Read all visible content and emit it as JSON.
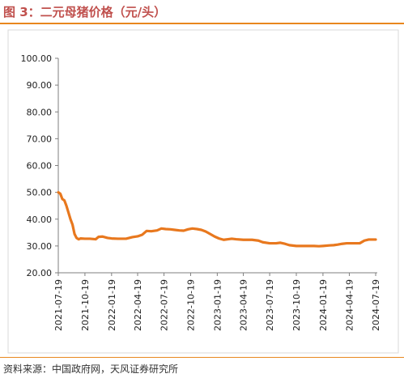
{
  "figure": {
    "title": "图 3：二元母猪价格（元/头）",
    "source": "资料来源：中国政府网，天风证券研究所"
  },
  "colors": {
    "accent": "#e8871e",
    "title": "#c0504d",
    "line": "#e8781e",
    "axis": "#7f7f7f"
  },
  "chart_data": {
    "type": "line",
    "title": "",
    "xlabel": "",
    "ylabel": "",
    "ylim": [
      20,
      100
    ],
    "grid": false,
    "y_ticks": [
      "20.00",
      "30.00",
      "40.00",
      "50.00",
      "60.00",
      "70.00",
      "80.00",
      "90.00",
      "100.00"
    ],
    "x_ticks": [
      "2021-07-19",
      "2021-10-19",
      "2022-01-19",
      "2022-04-19",
      "2022-07-19",
      "2022-10-19",
      "2023-01-19",
      "2023-04-19",
      "2023-07-19",
      "2023-10-19",
      "2024-01-19",
      "2024-04-19",
      "2024-07-19"
    ],
    "series": [
      {
        "values": [
          [
            "2021-07-19",
            50.0
          ],
          [
            "2021-07-26",
            49.5
          ],
          [
            "2021-08-02",
            47.5
          ],
          [
            "2021-08-09",
            47.0
          ],
          [
            "2021-08-16",
            45.0
          ],
          [
            "2021-08-23",
            42.5
          ],
          [
            "2021-08-30",
            40.0
          ],
          [
            "2021-09-06",
            38.0
          ],
          [
            "2021-09-13",
            34.5
          ],
          [
            "2021-09-20",
            33.0
          ],
          [
            "2021-09-27",
            32.5
          ],
          [
            "2021-10-04",
            32.8
          ],
          [
            "2021-10-19",
            32.7
          ],
          [
            "2021-11-05",
            32.7
          ],
          [
            "2021-11-25",
            32.5
          ],
          [
            "2021-12-05",
            33.4
          ],
          [
            "2021-12-19",
            33.5
          ],
          [
            "2022-01-05",
            33.0
          ],
          [
            "2022-01-19",
            32.8
          ],
          [
            "2022-02-10",
            32.7
          ],
          [
            "2022-03-10",
            32.7
          ],
          [
            "2022-04-01",
            33.3
          ],
          [
            "2022-04-19",
            33.6
          ],
          [
            "2022-05-05",
            34.2
          ],
          [
            "2022-05-20",
            35.6
          ],
          [
            "2022-06-05",
            35.5
          ],
          [
            "2022-06-25",
            35.8
          ],
          [
            "2022-07-10",
            36.5
          ],
          [
            "2022-07-25",
            36.3
          ],
          [
            "2022-08-10",
            36.2
          ],
          [
            "2022-08-25",
            36.0
          ],
          [
            "2022-09-10",
            35.8
          ],
          [
            "2022-09-25",
            35.7
          ],
          [
            "2022-10-10",
            36.2
          ],
          [
            "2022-10-25",
            36.5
          ],
          [
            "2022-11-10",
            36.3
          ],
          [
            "2022-11-25",
            36.0
          ],
          [
            "2022-12-10",
            35.4
          ],
          [
            "2022-12-25",
            34.5
          ],
          [
            "2023-01-10",
            33.5
          ],
          [
            "2023-01-25",
            32.8
          ],
          [
            "2023-02-10",
            32.3
          ],
          [
            "2023-02-25",
            32.5
          ],
          [
            "2023-03-10",
            32.7
          ],
          [
            "2023-03-25",
            32.5
          ],
          [
            "2023-04-19",
            32.3
          ],
          [
            "2023-05-19",
            32.3
          ],
          [
            "2023-06-10",
            32.0
          ],
          [
            "2023-06-25",
            31.4
          ],
          [
            "2023-07-19",
            31.0
          ],
          [
            "2023-08-10",
            31.0
          ],
          [
            "2023-08-25",
            31.2
          ],
          [
            "2023-09-10",
            30.8
          ],
          [
            "2023-09-25",
            30.3
          ],
          [
            "2023-10-19",
            30.0
          ],
          [
            "2023-11-19",
            30.0
          ],
          [
            "2023-12-19",
            30.0
          ],
          [
            "2024-01-05",
            29.9
          ],
          [
            "2024-01-19",
            30.0
          ],
          [
            "2024-02-10",
            30.2
          ],
          [
            "2024-02-25",
            30.3
          ],
          [
            "2024-03-10",
            30.5
          ],
          [
            "2024-03-25",
            30.8
          ],
          [
            "2024-04-10",
            31.0
          ],
          [
            "2024-04-25",
            31.0
          ],
          [
            "2024-05-10",
            31.0
          ],
          [
            "2024-05-25",
            31.0
          ],
          [
            "2024-06-10",
            32.0
          ],
          [
            "2024-06-25",
            32.4
          ],
          [
            "2024-07-19",
            32.4
          ]
        ]
      }
    ]
  }
}
